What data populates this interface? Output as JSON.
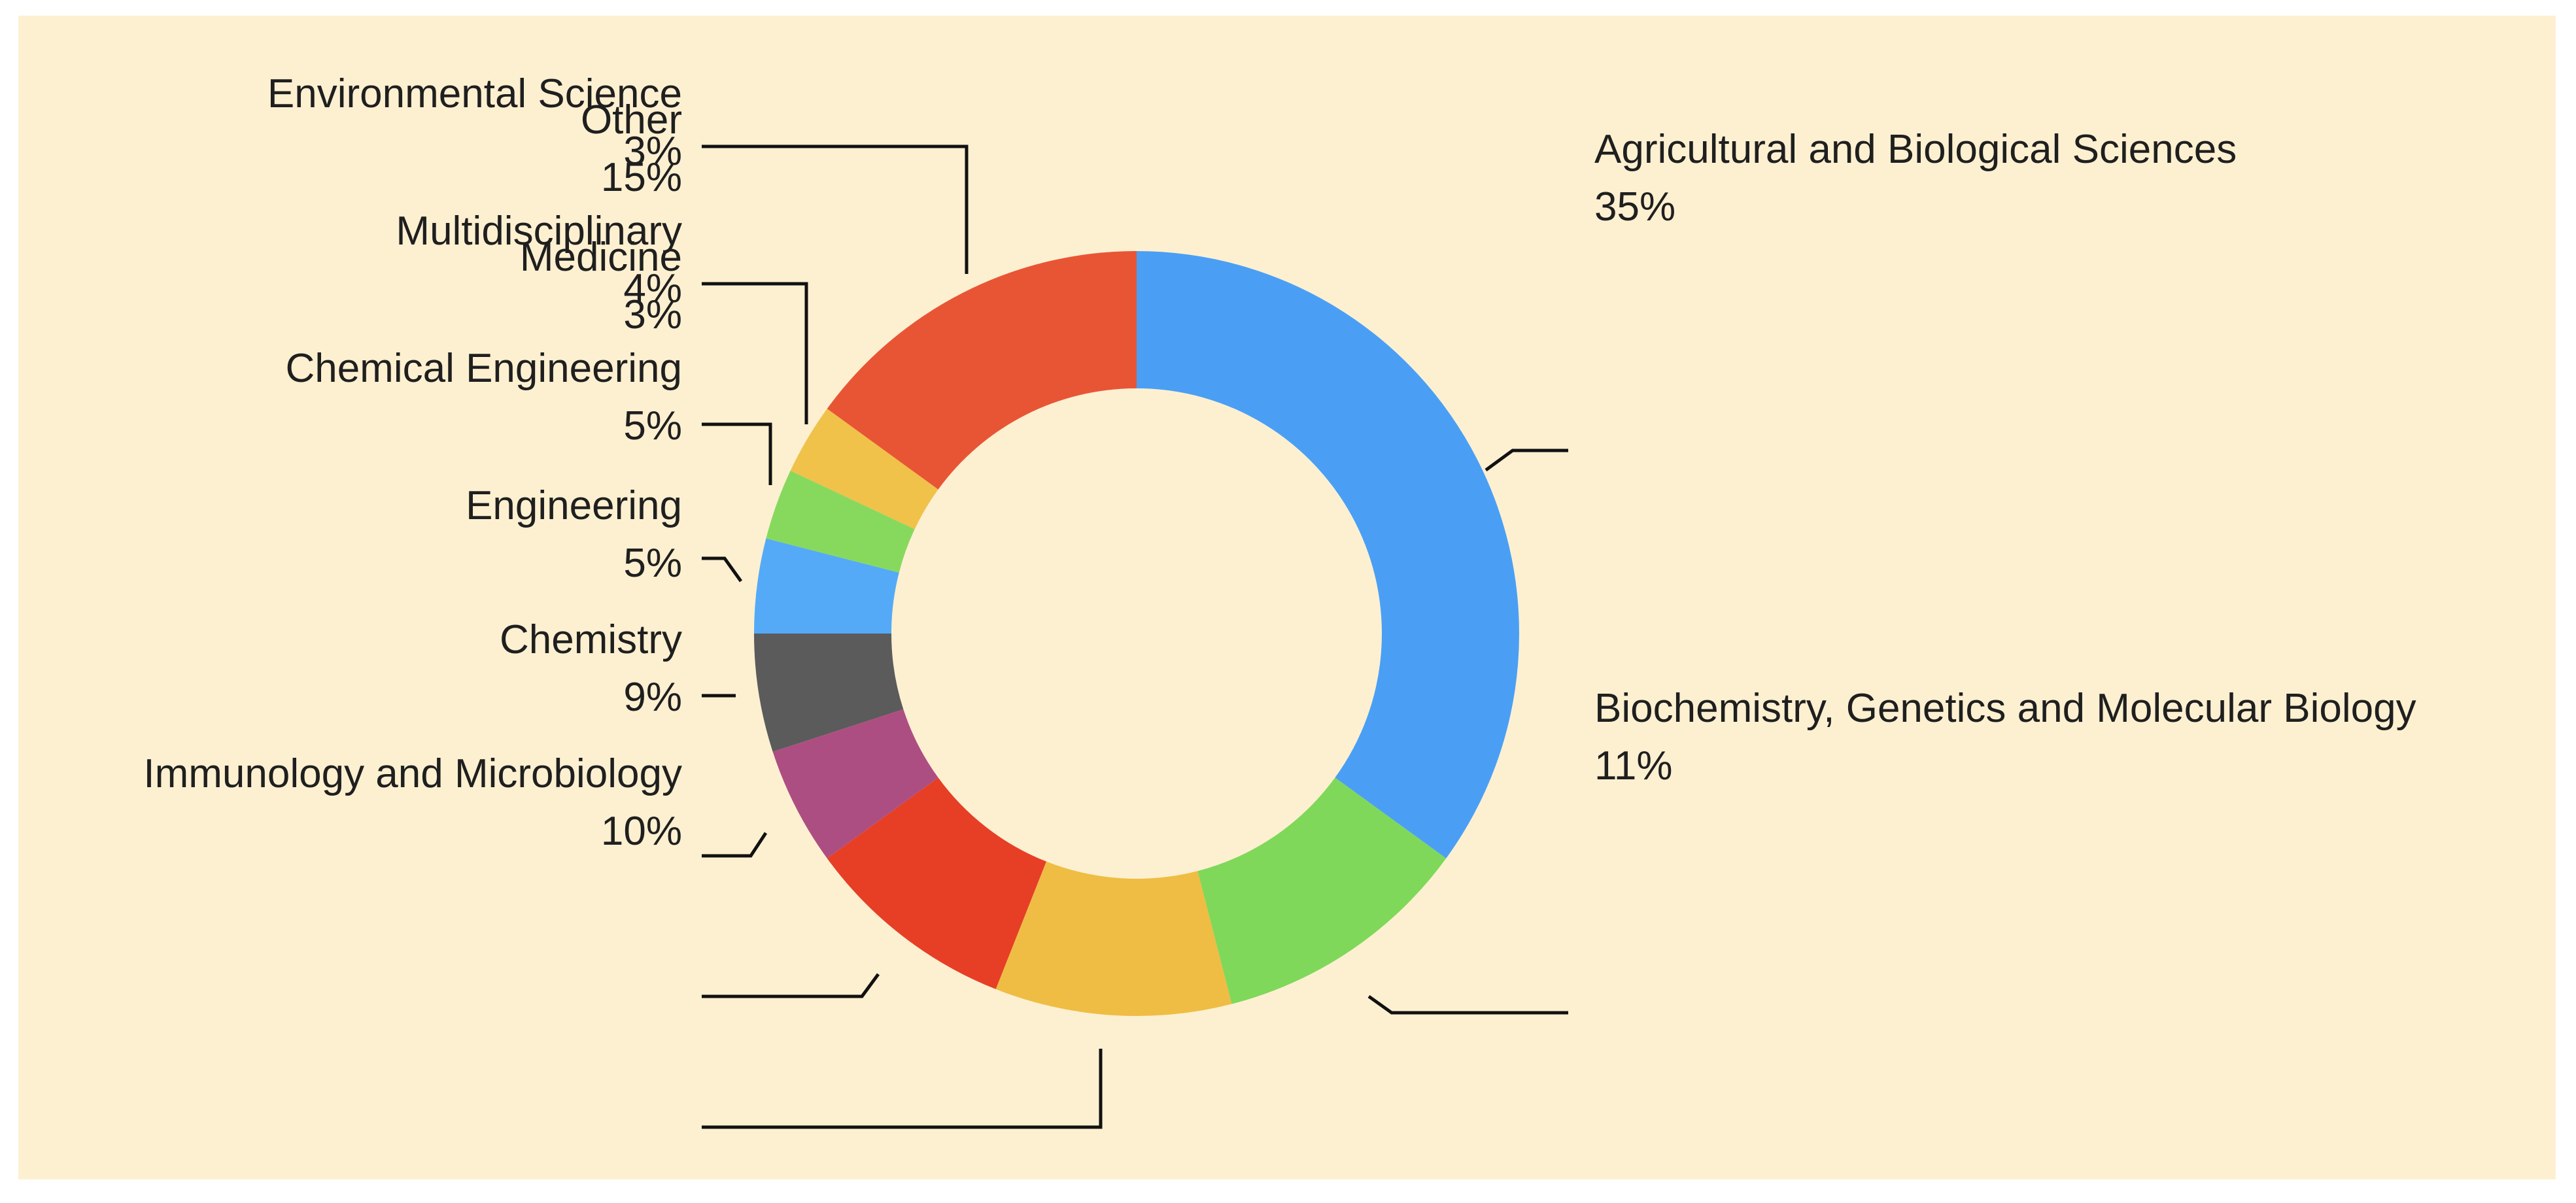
{
  "chart_data": {
    "type": "pie",
    "style": "donut",
    "background": "#fdf0d1",
    "slices": [
      {
        "label": "Agricultural and Biological Sciences",
        "value": 35,
        "value_label": "35%",
        "color": "#4a9ff5"
      },
      {
        "label": "Biochemistry, Genetics and Molecular Biology",
        "value": 11,
        "value_label": "11%",
        "color": "#7fd85a"
      },
      {
        "label": "Immunology and Microbiology",
        "value": 10,
        "value_label": "10%",
        "color": "#efbd44"
      },
      {
        "label": "Chemistry",
        "value": 9,
        "value_label": "9%",
        "color": "#e63f26"
      },
      {
        "label": "Engineering",
        "value": 5,
        "value_label": "5%",
        "color": "#ad4e82"
      },
      {
        "label": "Chemical Engineering",
        "value": 5,
        "value_label": "5%",
        "color": "#5b5b5b"
      },
      {
        "label": "Multidisciplinary",
        "value": 4,
        "value_label": "4%",
        "color": "#54aaf6"
      },
      {
        "label": "Environmental Science",
        "value": 3,
        "value_label": "3%",
        "color": "#87d95e"
      },
      {
        "label": "Medicine",
        "value": 3,
        "value_label": "3%",
        "color": "#f0c24a"
      },
      {
        "label": "Other",
        "value": 15,
        "value_label": "15%",
        "color": "#e85535"
      }
    ]
  }
}
